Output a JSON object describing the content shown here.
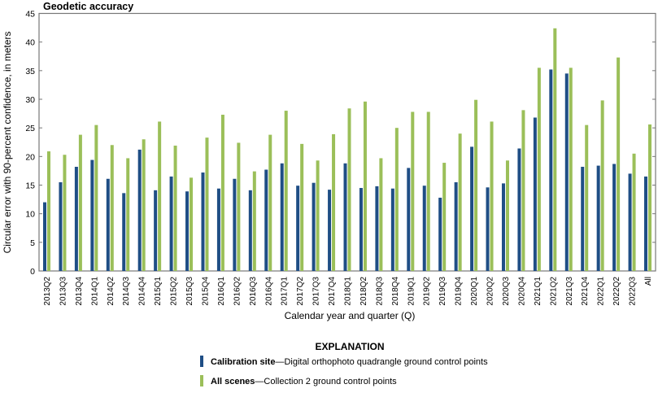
{
  "chart_data": {
    "type": "bar",
    "title": "Geodetic accuracy",
    "xlabel": "Calendar year and quarter (Q)",
    "ylabel": "Circular error with 90-percent confidence, in meters",
    "ylim": [
      0,
      45
    ],
    "yticks": [
      0,
      5,
      10,
      15,
      20,
      25,
      30,
      35,
      40,
      45
    ],
    "grid": false,
    "categories": [
      "2013Q2",
      "2013Q3",
      "2013Q4",
      "2014Q1",
      "2014Q2",
      "2014Q3",
      "2014Q4",
      "2015Q1",
      "2015Q2",
      "2015Q3",
      "2015Q4",
      "2016Q1",
      "2016Q2",
      "2016Q3",
      "2016Q4",
      "2017Q1",
      "2017Q2",
      "2017Q3",
      "2017Q4",
      "2018Q1",
      "2018Q2",
      "2018Q3",
      "2018Q4",
      "2019Q1",
      "2019Q2",
      "2019Q3",
      "2019Q4",
      "2020Q1",
      "2020Q2",
      "2020Q3",
      "2020Q4",
      "2021Q1",
      "2021Q2",
      "2021Q3",
      "2021Q4",
      "2022Q1",
      "2022Q2",
      "2022Q3",
      "All"
    ],
    "series": [
      {
        "name": "Calibration site",
        "description": "—Digital orthophoto quadrangle ground control points",
        "color": "#1f4e85",
        "values": [
          12.0,
          15.5,
          18.2,
          19.4,
          16.1,
          13.6,
          21.2,
          14.1,
          16.5,
          13.9,
          17.2,
          14.4,
          16.1,
          14.1,
          17.7,
          18.8,
          14.9,
          15.4,
          14.2,
          18.8,
          14.5,
          14.8,
          14.4,
          18.0,
          14.9,
          12.8,
          15.5,
          21.7,
          14.6,
          15.3,
          21.4,
          26.8,
          35.2,
          34.5,
          18.2,
          18.4,
          18.7,
          17.0,
          16.5
        ]
      },
      {
        "name": "All scenes",
        "description": "—Collection 2 ground control points",
        "color": "#9bbf59",
        "values": [
          20.9,
          20.3,
          23.8,
          25.5,
          22.0,
          19.7,
          23.0,
          26.1,
          21.9,
          16.3,
          23.3,
          27.3,
          22.4,
          17.4,
          23.8,
          28.0,
          22.2,
          19.3,
          23.9,
          28.4,
          29.6,
          19.7,
          25.0,
          27.8,
          27.8,
          18.9,
          24.0,
          29.9,
          26.1,
          19.3,
          28.1,
          35.5,
          42.4,
          35.5,
          25.5,
          29.8,
          37.3,
          20.5,
          25.6
        ]
      }
    ],
    "legend": {
      "title": "EXPLANATION",
      "placement": "bottom-center"
    }
  }
}
